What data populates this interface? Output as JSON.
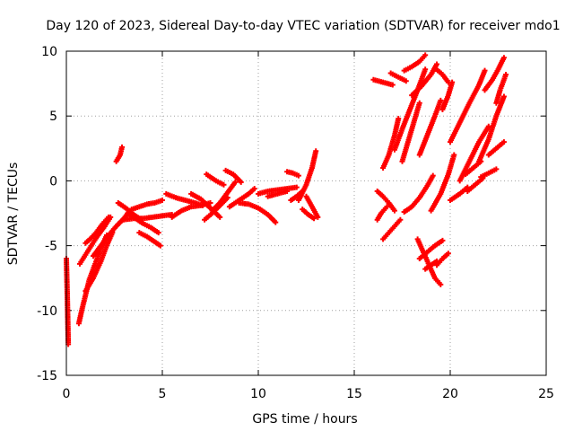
{
  "chart_data": {
    "type": "scatter",
    "title": "Day 120 of 2023, Sidereal Day-to-day VTEC variation (SDTVAR) for receiver mdo1",
    "xlabel": "GPS time / hours",
    "ylabel": "SDTVAR / TECUs",
    "xlim": [
      0,
      25
    ],
    "ylim": [
      -15,
      10
    ],
    "xticks": [
      "0",
      "5",
      "10",
      "15",
      "20",
      "25"
    ],
    "yticks": [
      "-15",
      "-10",
      "-5",
      "0",
      "5",
      "10"
    ],
    "grid": true,
    "marker": "+",
    "color": "#ff0000",
    "series": [
      {
        "name": "s1",
        "x": [
          0.0,
          0.05,
          0.1
        ],
        "y": [
          -6.0,
          -9.0,
          -12.6
        ]
      },
      {
        "name": "s2",
        "x": [
          0.65,
          0.8,
          1.0,
          1.2,
          1.5,
          1.8,
          2.1
        ],
        "y": [
          -11.0,
          -10.0,
          -8.8,
          -7.6,
          -6.4,
          -5.2,
          -4.2
        ]
      },
      {
        "name": "s3",
        "x": [
          0.7,
          1.0,
          1.3,
          1.6,
          2.0,
          2.3
        ],
        "y": [
          -6.4,
          -5.7,
          -5.0,
          -4.3,
          -3.5,
          -2.8
        ]
      },
      {
        "name": "s4",
        "x": [
          1.0,
          1.4,
          1.8,
          2.1,
          2.4
        ],
        "y": [
          -8.5,
          -7.5,
          -6.2,
          -5.0,
          -4.0
        ]
      },
      {
        "name": "s5",
        "x": [
          1.0,
          1.3,
          1.6,
          1.9,
          2.2
        ],
        "y": [
          -4.8,
          -4.4,
          -3.9,
          -3.3,
          -2.8
        ]
      },
      {
        "name": "s6",
        "x": [
          1.4,
          1.8,
          2.2,
          2.6,
          3.0,
          3.3
        ],
        "y": [
          -5.8,
          -5.0,
          -4.2,
          -3.5,
          -2.9,
          -2.3
        ]
      },
      {
        "name": "s7",
        "x": [
          2.6,
          2.8,
          2.9
        ],
        "y": [
          1.5,
          2.0,
          2.6
        ]
      },
      {
        "name": "s8",
        "x": [
          2.7,
          3.1,
          3.5,
          3.9
        ],
        "y": [
          -1.7,
          -2.1,
          -2.6,
          -3.0
        ]
      },
      {
        "name": "s9",
        "x": [
          3.0,
          3.5,
          4.0,
          4.5,
          5.0,
          5.5
        ],
        "y": [
          -3.0,
          -2.9,
          -2.9,
          -2.8,
          -2.7,
          -2.6
        ]
      },
      {
        "name": "s10",
        "x": [
          3.2,
          3.6,
          4.0,
          4.4,
          4.8
        ],
        "y": [
          -2.5,
          -2.9,
          -3.3,
          -3.6,
          -4.0
        ]
      },
      {
        "name": "s11",
        "x": [
          3.8,
          4.2,
          4.6,
          4.9
        ],
        "y": [
          -4.0,
          -4.3,
          -4.7,
          -5.0
        ]
      },
      {
        "name": "s12",
        "x": [
          3.4,
          3.8,
          4.2,
          4.6,
          5.0
        ],
        "y": [
          -2.2,
          -2.0,
          -1.8,
          -1.7,
          -1.5
        ]
      },
      {
        "name": "s13",
        "x": [
          5.5,
          6.0,
          6.5,
          7.0,
          7.5
        ],
        "y": [
          -2.8,
          -2.3,
          -2.0,
          -1.9,
          -1.7
        ]
      },
      {
        "name": "s14",
        "x": [
          5.2,
          5.7,
          6.2,
          6.7,
          7.1
        ],
        "y": [
          -1.0,
          -1.3,
          -1.5,
          -1.7,
          -1.9
        ]
      },
      {
        "name": "s15",
        "x": [
          6.5,
          7.0,
          7.5,
          8.0
        ],
        "y": [
          -1.0,
          -1.4,
          -2.1,
          -2.8
        ]
      },
      {
        "name": "s16",
        "x": [
          7.2,
          7.6,
          8.0,
          8.4
        ],
        "y": [
          -3.0,
          -2.5,
          -1.9,
          -1.3
        ]
      },
      {
        "name": "s17",
        "x": [
          7.6,
          8.0,
          8.4,
          8.8
        ],
        "y": [
          -2.3,
          -1.7,
          -0.9,
          -0.1
        ]
      },
      {
        "name": "s18",
        "x": [
          7.3,
          7.8,
          8.2
        ],
        "y": [
          0.5,
          0.0,
          -0.3
        ]
      },
      {
        "name": "s19",
        "x": [
          8.3,
          8.7,
          9.1
        ],
        "y": [
          0.8,
          0.5,
          -0.1
        ]
      },
      {
        "name": "s20",
        "x": [
          8.5,
          9.0,
          9.5,
          9.8
        ],
        "y": [
          -2.0,
          -1.5,
          -1.0,
          -0.6
        ]
      },
      {
        "name": "s21",
        "x": [
          9.0,
          9.5,
          10.0,
          10.5,
          10.9
        ],
        "y": [
          -1.7,
          -1.8,
          -2.1,
          -2.6,
          -3.2
        ]
      },
      {
        "name": "s22",
        "x": [
          10.0,
          10.5,
          11.0,
          11.5,
          12.0
        ],
        "y": [
          -1.0,
          -0.8,
          -0.7,
          -0.6,
          -0.5
        ]
      },
      {
        "name": "s23",
        "x": [
          10.5,
          11.0,
          11.5
        ],
        "y": [
          -1.2,
          -1.0,
          -0.8
        ]
      },
      {
        "name": "s24",
        "x": [
          11.7,
          12.0,
          12.3
        ],
        "y": [
          -1.5,
          -1.2,
          -0.8
        ]
      },
      {
        "name": "s25",
        "x": [
          11.5,
          11.8,
          12.1
        ],
        "y": [
          0.7,
          0.6,
          0.4
        ]
      },
      {
        "name": "s26",
        "x": [
          12.1,
          12.5,
          12.8,
          13.0
        ],
        "y": [
          -1.5,
          -0.3,
          1.0,
          2.3
        ]
      },
      {
        "name": "s27",
        "x": [
          12.3,
          12.6,
          12.9
        ],
        "y": [
          -2.2,
          -2.6,
          -2.9
        ]
      },
      {
        "name": "s28",
        "x": [
          12.5,
          12.8,
          13.1
        ],
        "y": [
          -1.2,
          -2.0,
          -2.8
        ]
      },
      {
        "name": "s29",
        "x": [
          16.0,
          16.5,
          17.0
        ],
        "y": [
          7.8,
          7.6,
          7.4
        ]
      },
      {
        "name": "s30",
        "x": [
          16.2,
          16.5,
          16.8,
          17.1
        ],
        "y": [
          -0.8,
          -1.2,
          -1.7,
          -2.3
        ]
      },
      {
        "name": "s31",
        "x": [
          16.2,
          16.4,
          16.7
        ],
        "y": [
          -3.0,
          -2.5,
          -2.0
        ]
      },
      {
        "name": "s32",
        "x": [
          16.5,
          16.8,
          17.1,
          17.4
        ],
        "y": [
          -4.5,
          -4.0,
          -3.5,
          -3.0
        ]
      },
      {
        "name": "s33",
        "x": [
          16.5,
          16.8,
          17.1,
          17.3
        ],
        "y": [
          1.0,
          2.0,
          3.5,
          4.8
        ]
      },
      {
        "name": "s34",
        "x": [
          17.1,
          17.5,
          17.9,
          18.3,
          18.7
        ],
        "y": [
          2.4,
          4.0,
          5.5,
          7.0,
          8.6
        ]
      },
      {
        "name": "s35",
        "x": [
          16.9,
          17.3,
          17.7
        ],
        "y": [
          8.3,
          8.0,
          7.7
        ]
      },
      {
        "name": "s36",
        "x": [
          17.5,
          17.8,
          18.1,
          18.4
        ],
        "y": [
          1.5,
          3.0,
          4.5,
          6.0
        ]
      },
      {
        "name": "s37",
        "x": [
          17.6,
          18.0,
          18.4,
          18.8,
          19.1
        ],
        "y": [
          -2.4,
          -2.0,
          -1.3,
          -0.4,
          0.4
        ]
      },
      {
        "name": "s38",
        "x": [
          17.6,
          18.0,
          18.4,
          18.7
        ],
        "y": [
          8.5,
          8.8,
          9.2,
          9.7
        ]
      },
      {
        "name": "s39",
        "x": [
          18.0,
          18.5,
          19.0,
          19.3
        ],
        "y": [
          6.6,
          7.3,
          8.2,
          9.0
        ]
      },
      {
        "name": "s40",
        "x": [
          18.4,
          18.8,
          19.2,
          19.5
        ],
        "y": [
          2.0,
          3.5,
          5.0,
          6.2
        ]
      },
      {
        "name": "s41",
        "x": [
          18.3,
          18.6,
          18.9,
          19.2,
          19.5
        ],
        "y": [
          -4.5,
          -5.5,
          -6.5,
          -7.5,
          -8.0
        ]
      },
      {
        "name": "s42",
        "x": [
          18.4,
          18.8,
          19.2,
          19.6
        ],
        "y": [
          -6.0,
          -5.5,
          -5.0,
          -4.6
        ]
      },
      {
        "name": "s43",
        "x": [
          18.7,
          19.0,
          19.3
        ],
        "y": [
          -6.8,
          -6.5,
          -6.2
        ]
      },
      {
        "name": "s44",
        "x": [
          19.2,
          19.6,
          19.9
        ],
        "y": [
          8.7,
          8.2,
          7.6
        ]
      },
      {
        "name": "s45",
        "x": [
          19.0,
          19.5,
          19.9,
          20.2
        ],
        "y": [
          -2.3,
          -1.0,
          0.5,
          2.0
        ]
      },
      {
        "name": "s46",
        "x": [
          19.6,
          19.9,
          20.1
        ],
        "y": [
          5.5,
          6.6,
          7.6
        ]
      },
      {
        "name": "s47",
        "x": [
          19.3,
          19.6,
          19.9
        ],
        "y": [
          -6.5,
          -6.0,
          -5.6
        ]
      },
      {
        "name": "s48",
        "x": [
          20.0,
          20.5,
          20.9
        ],
        "y": [
          -1.5,
          -1.0,
          -0.5
        ]
      },
      {
        "name": "s49",
        "x": [
          20.0,
          20.5,
          21.0,
          21.5,
          21.8
        ],
        "y": [
          3.0,
          4.5,
          6.0,
          7.4,
          8.5
        ]
      },
      {
        "name": "s50",
        "x": [
          20.5,
          21.0,
          21.5,
          22.0
        ],
        "y": [
          0.0,
          1.5,
          3.0,
          4.2
        ]
      },
      {
        "name": "s51",
        "x": [
          20.8,
          21.2,
          21.6
        ],
        "y": [
          0.5,
          1.0,
          1.5
        ]
      },
      {
        "name": "s52",
        "x": [
          21.5,
          22.0,
          22.4,
          22.8
        ],
        "y": [
          1.5,
          3.2,
          5.0,
          6.5
        ]
      },
      {
        "name": "s53",
        "x": [
          21.8,
          22.2,
          22.5,
          22.8
        ],
        "y": [
          7.0,
          7.8,
          8.6,
          9.5
        ]
      },
      {
        "name": "s54",
        "x": [
          22.0,
          22.4,
          22.8
        ],
        "y": [
          2.0,
          2.5,
          3.0
        ]
      },
      {
        "name": "s55",
        "x": [
          21.6,
          22.0,
          22.4
        ],
        "y": [
          0.3,
          0.6,
          0.9
        ]
      },
      {
        "name": "s56",
        "x": [
          22.4,
          22.6,
          22.9
        ],
        "y": [
          6.0,
          7.0,
          8.2
        ]
      },
      {
        "name": "s57",
        "x": [
          20.9,
          21.3,
          21.7
        ],
        "y": [
          -0.8,
          -0.3,
          0.2
        ]
      }
    ]
  }
}
